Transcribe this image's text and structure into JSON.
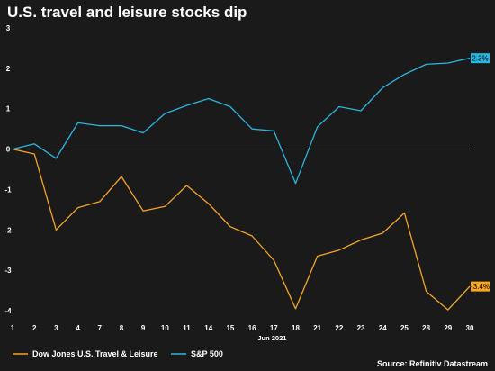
{
  "chart_data": {
    "type": "line",
    "title": "U.S. travel and leisure stocks dip",
    "x_sublabel": "Jun 2021",
    "categories": [
      "1",
      "2",
      "3",
      "4",
      "7",
      "8",
      "9",
      "10",
      "11",
      "14",
      "15",
      "16",
      "17",
      "18",
      "21",
      "22",
      "23",
      "24",
      "25",
      "28",
      "29",
      "30"
    ],
    "ylim": [
      -4.2,
      3
    ],
    "yticks": [
      3,
      2,
      1,
      0,
      -1,
      -2,
      -3,
      -4
    ],
    "series": [
      {
        "name": "Dow Jones U.S. Travel & Leisure",
        "color": "#f5a623",
        "values": [
          0,
          -0.12,
          -2.0,
          -1.45,
          -1.3,
          -0.68,
          -1.53,
          -1.42,
          -0.9,
          -1.35,
          -1.92,
          -2.15,
          -2.75,
          -3.95,
          -2.65,
          -2.5,
          -2.25,
          -2.08,
          -1.58,
          -3.52,
          -3.98,
          -3.4
        ],
        "end_label": "-3.4%"
      },
      {
        "name": "S&P 500",
        "color": "#29b6e0",
        "values": [
          0,
          0.13,
          -0.23,
          0.65,
          0.58,
          0.58,
          0.4,
          0.88,
          1.08,
          1.25,
          1.05,
          0.5,
          0.45,
          -0.85,
          0.55,
          1.05,
          0.95,
          1.52,
          1.85,
          2.1,
          2.13,
          2.25
        ],
        "end_label": "2.3%"
      }
    ],
    "source": "Source: Refinitiv Datastream"
  }
}
